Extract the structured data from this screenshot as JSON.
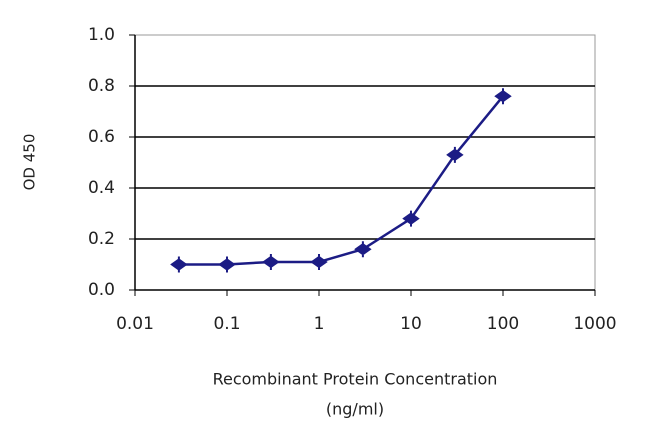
{
  "chart_data": {
    "type": "line",
    "y_label": "OD 450",
    "x_label": [
      "Recombinant Protein Concentration",
      "(ng/ml)"
    ],
    "x": [
      0.03,
      0.1,
      0.3,
      1,
      3,
      10,
      30,
      100
    ],
    "series": [
      {
        "color": "#1c1c85",
        "values": [
          0.1,
          0.1,
          0.11,
          0.11,
          0.16,
          0.28,
          0.53,
          0.76
        ]
      }
    ],
    "xscale": "log",
    "xlim": [
      0.01,
      1000
    ],
    "xticks": [
      0.01,
      0.1,
      1,
      10,
      100,
      1000
    ],
    "ylim": [
      0,
      1
    ],
    "yticks": [
      {
        "value": 0,
        "label": "0.0"
      },
      0.2,
      0.4,
      0.6,
      0.8,
      {
        "value": 1,
        "label": "1.0"
      }
    ],
    "grid": true
  }
}
